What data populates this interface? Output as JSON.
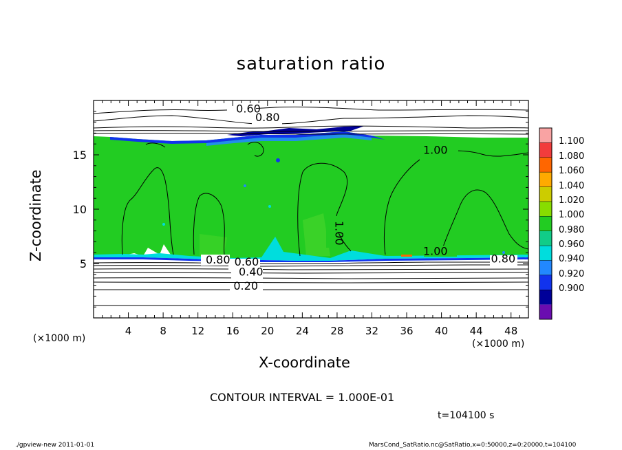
{
  "chart_data": {
    "type": "heatmap",
    "title": "saturation ratio",
    "xlabel": "X-coordinate",
    "ylabel": "Z-coordinate",
    "x_unit_left": "(×1000 m)",
    "x_unit_right": "(×1000 m)",
    "xlim": [
      0,
      50
    ],
    "ylim": [
      0,
      20
    ],
    "x_ticks": [
      4,
      8,
      12,
      16,
      20,
      24,
      28,
      32,
      36,
      40,
      44,
      48
    ],
    "y_ticks": [
      5,
      10,
      15
    ],
    "colorbar": {
      "levels": [
        "1.100",
        "1.080",
        "1.060",
        "1.040",
        "1.020",
        "1.000",
        "0.980",
        "0.960",
        "0.940",
        "0.920",
        "0.900"
      ],
      "colors": [
        "#f9a3a3",
        "#f23c3c",
        "#ff6600",
        "#ffaa00",
        "#cccc00",
        "#88dd00",
        "#22cc22",
        "#11cc88",
        "#00dddd",
        "#2288ff",
        "#1133ee",
        "#000099",
        "#6a0cb0"
      ]
    },
    "contour_labels": [
      {
        "text": "0.60",
        "x": 17.8,
        "z": 18.9
      },
      {
        "text": "0.80",
        "x": 20.0,
        "z": 18.1
      },
      {
        "text": "1.00",
        "x": 39.3,
        "z": 15.1
      },
      {
        "text": "1.00",
        "x": 27.8,
        "z": 7.8
      },
      {
        "text": "1.00",
        "x": 39.3,
        "z": 5.8
      },
      {
        "text": "0.80",
        "x": 14.3,
        "z": 5.0
      },
      {
        "text": "0.60",
        "x": 17.6,
        "z": 4.8
      },
      {
        "text": "0.40",
        "x": 18.1,
        "z": 3.9
      },
      {
        "text": "0.20",
        "x": 17.5,
        "z": 2.6
      },
      {
        "text": "0.80",
        "x": 47.1,
        "z": 5.1
      }
    ],
    "contour_interval": "CONTOUR INTERVAL = 1.000E-01",
    "time": "t=104100 s"
  },
  "footer": {
    "program": "./gpview-new   2011-01-01",
    "source": "MarsCond_SatRatio.nc@SatRatio,x=0:50000,z=0:20000,t=104100"
  }
}
